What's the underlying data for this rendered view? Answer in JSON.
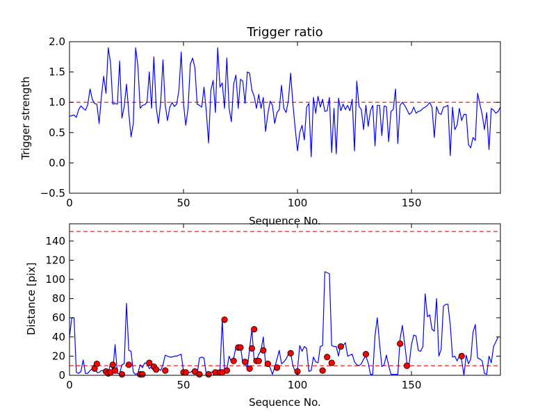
{
  "chart_data": [
    {
      "type": "line",
      "title": "Trigger ratio",
      "xlabel": "Sequence No.",
      "ylabel": "Trigger strength",
      "xlim": [
        0,
        189
      ],
      "ylim": [
        -0.5,
        2.0
      ],
      "xticks": [
        "0",
        "50",
        "100",
        "150"
      ],
      "xtick_values": [
        0,
        50,
        100,
        150
      ],
      "yticks": [
        "−0.5",
        "0.0",
        "0.5",
        "1.0",
        "1.5",
        "2.0"
      ],
      "ytick_values": [
        -0.5,
        0.0,
        0.5,
        1.0,
        1.5,
        2.0
      ],
      "series": [
        {
          "name": "trigger strength",
          "color": "#0000ff",
          "style": "solid",
          "x_start": 0,
          "values": [
            0.77,
            0.78,
            0.79,
            0.75,
            0.88,
            0.94,
            0.9,
            0.87,
            0.96,
            1.22,
            1.05,
            0.98,
            0.97,
            0.65,
            1.1,
            1.43,
            1.15,
            1.9,
            1.65,
            0.97,
            0.98,
            0.97,
            1.68,
            0.74,
            0.93,
            1.3,
            0.83,
            0.43,
            0.65,
            1.9,
            1.6,
            0.9,
            0.95,
            0.96,
            1.0,
            1.5,
            0.9,
            1.75,
            0.93,
            0.65,
            1.0,
            1.7,
            0.95,
            0.7,
            0.92,
            1.0,
            0.93,
            0.97,
            1.2,
            1.83,
            0.98,
            0.62,
            0.9,
            1.63,
            1.73,
            1.57,
            0.97,
            0.95,
            0.92,
            1.25,
            0.85,
            0.33,
            1.2,
            1.36,
            0.83,
            1.9,
            1.25,
            1.32,
            0.9,
            1.73,
            0.9,
            0.68,
            1.3,
            1.45,
            0.9,
            1.38,
            1.35,
            0.98,
            1.5,
            1.48,
            1.2,
            1.1,
            0.9,
            1.13,
            0.9,
            1.08,
            0.52,
            0.81,
            1.02,
            0.95,
            0.65,
            0.83,
            0.88,
            1.28,
            0.9,
            0.83,
            1.03,
            1.48,
            0.97,
            0.57,
            0.2,
            0.5,
            0.62,
            0.38,
            0.92,
            0.98,
            0.1,
            1.08,
            0.82,
            1.1,
            0.92,
            1.05,
            0.85,
            0.86,
            1.08,
            0.17,
            0.9,
            0.15,
            1.07,
            0.86,
            0.97,
            0.88,
            0.95,
            0.86,
            1.05,
            0.2,
            1.35,
            0.93,
            0.88,
            0.55,
            0.95,
            0.6,
            0.86,
            0.95,
            0.28,
            0.95,
            0.95,
            0.45,
            0.94,
            0.93,
            0.35,
            0.85,
            0.88,
            1.22,
            0.32,
            0.95,
            1.0,
            0.95,
            0.88,
            0.8,
            0.83,
            0.92,
            0.82,
            0.85,
            0.86,
            0.9,
            0.92,
            0.95,
            1.0,
            0.92,
            0.42,
            0.93,
            0.82,
            0.8,
            0.92,
            0.93,
            0.95,
            0.12,
            0.92,
            0.55,
            0.62,
            0.9,
            0.7,
            0.8,
            0.8,
            0.3,
            0.25,
            0.42,
            0.37,
            1.15,
            0.97,
            0.8,
            0.55,
            0.83,
            0.22,
            0.9,
            0.87,
            0.82,
            0.85,
            0.92
          ]
        }
      ],
      "reference_lines": [
        {
          "y": 1.0,
          "color": "#ff0000",
          "style": "dashed"
        }
      ]
    },
    {
      "type": "line",
      "title": "",
      "xlabel": "Sequence No.",
      "ylabel": "Distance [pix]",
      "xlim": [
        0,
        189
      ],
      "ylim": [
        0,
        158
      ],
      "xticks": [
        "0",
        "50",
        "100",
        "150"
      ],
      "xtick_values": [
        0,
        50,
        100,
        150
      ],
      "yticks": [
        "0",
        "20",
        "40",
        "60",
        "80",
        "100",
        "120",
        "140"
      ],
      "ytick_values": [
        0,
        20,
        40,
        60,
        80,
        100,
        120,
        140
      ],
      "series": [
        {
          "name": "distance",
          "color": "#0000ff",
          "style": "solid",
          "x_start": 0,
          "values": [
            40,
            60,
            60,
            3,
            2,
            4,
            16,
            2,
            2,
            5,
            7,
            12,
            3,
            3,
            5,
            5,
            2,
            3,
            12,
            5,
            32,
            2,
            2,
            11,
            12,
            75,
            26,
            25,
            3,
            1,
            2,
            11,
            8,
            13,
            12,
            7,
            9,
            5,
            6,
            7,
            5,
            11,
            21,
            20,
            19,
            19,
            20,
            20,
            21,
            22,
            4,
            3,
            3,
            3,
            5,
            2,
            1,
            18,
            19,
            18,
            1,
            2,
            3,
            4,
            3,
            2,
            4,
            58,
            5,
            6,
            20,
            14,
            18,
            29,
            29,
            30,
            13,
            14,
            7,
            28,
            48,
            15,
            15,
            22,
            26,
            40,
            12,
            12,
            8,
            1,
            8,
            17,
            26,
            12,
            14,
            17,
            22,
            23,
            10,
            4,
            6,
            31,
            25,
            30,
            28,
            4,
            5,
            19,
            14,
            13,
            30,
            31,
            108,
            107,
            106,
            31,
            30,
            30,
            20,
            33,
            31,
            34,
            20,
            21,
            22,
            14,
            11,
            10,
            12,
            17,
            20,
            13,
            1,
            1,
            41,
            60,
            33,
            9,
            11,
            21,
            10,
            1,
            1,
            1,
            1,
            38,
            52,
            33,
            13,
            12,
            32,
            42,
            41,
            26,
            25,
            30,
            85,
            61,
            63,
            48,
            46,
            80,
            20,
            27,
            72,
            74,
            74,
            53,
            19,
            20,
            15,
            20,
            16,
            0,
            21,
            12,
            17,
            45,
            53,
            18,
            17,
            15,
            2,
            1,
            20,
            13,
            30,
            35,
            40
          ]
        }
      ],
      "markers": {
        "color": "#ff0000",
        "points": [
          [
            11,
            7
          ],
          [
            12,
            12
          ],
          [
            16,
            4
          ],
          [
            17,
            2
          ],
          [
            18,
            3
          ],
          [
            19,
            11
          ],
          [
            20,
            5
          ],
          [
            23,
            1
          ],
          [
            26,
            11
          ],
          [
            31,
            1
          ],
          [
            32,
            1
          ],
          [
            35,
            13
          ],
          [
            37,
            9
          ],
          [
            38,
            6
          ],
          [
            42,
            5
          ],
          [
            50,
            3
          ],
          [
            51,
            3
          ],
          [
            55,
            4
          ],
          [
            57,
            1
          ],
          [
            61,
            1
          ],
          [
            64,
            3
          ],
          [
            66,
            3
          ],
          [
            67,
            3
          ],
          [
            68,
            58
          ],
          [
            69,
            5
          ],
          [
            72,
            15
          ],
          [
            74,
            29
          ],
          [
            75,
            29
          ],
          [
            77,
            14
          ],
          [
            79,
            7
          ],
          [
            80,
            28
          ],
          [
            81,
            48
          ],
          [
            82,
            15
          ],
          [
            83,
            15
          ],
          [
            85,
            26
          ],
          [
            87,
            12
          ],
          [
            91,
            8
          ],
          [
            97,
            23
          ],
          [
            100,
            4
          ],
          [
            111,
            5
          ],
          [
            113,
            19
          ],
          [
            115,
            13
          ],
          [
            119,
            30
          ],
          [
            130,
            22
          ],
          [
            145,
            33
          ],
          [
            148,
            10
          ],
          [
            172,
            20
          ]
        ]
      },
      "reference_lines": [
        {
          "y": 150,
          "color": "#ff0000",
          "style": "dashed"
        },
        {
          "y": 10,
          "color": "#ff0000",
          "style": "dashed"
        }
      ]
    }
  ]
}
